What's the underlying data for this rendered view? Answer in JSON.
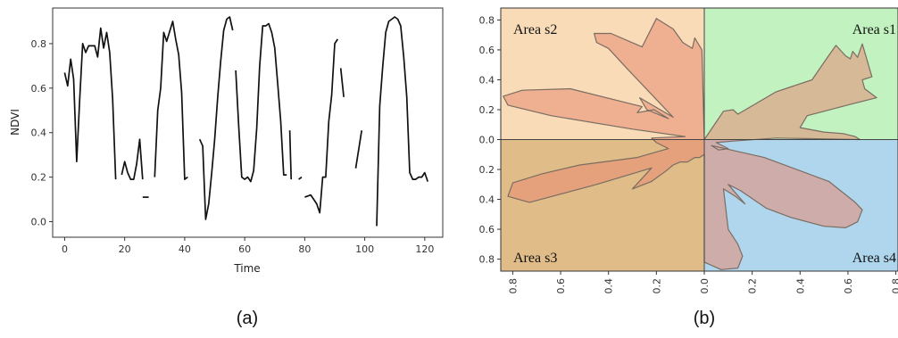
{
  "chart_data": [
    {
      "type": "line",
      "panel_label": "(a)",
      "xlabel": "Time",
      "ylabel": "NDVI",
      "xlim": [
        -4,
        126
      ],
      "ylim": [
        -0.07,
        0.96
      ],
      "xticks": [
        0,
        20,
        40,
        60,
        80,
        100,
        120
      ],
      "yticks": [
        0.0,
        0.2,
        0.4,
        0.6,
        0.8
      ],
      "grid": false,
      "series": [
        {
          "color": "#111111",
          "segments": [
            [
              [
                0,
                0.67
              ],
              [
                1,
                0.61
              ],
              [
                2,
                0.73
              ],
              [
                3,
                0.64
              ],
              [
                4,
                0.27
              ],
              [
                5,
                0.55
              ],
              [
                6,
                0.8
              ],
              [
                7,
                0.76
              ],
              [
                8,
                0.79
              ],
              [
                9,
                0.79
              ],
              [
                10,
                0.79
              ],
              [
                11,
                0.74
              ],
              [
                12,
                0.87
              ],
              [
                13,
                0.78
              ],
              [
                14,
                0.85
              ],
              [
                15,
                0.76
              ],
              [
                16,
                0.55
              ],
              [
                17,
                0.19
              ]
            ],
            [
              [
                19,
                0.21
              ],
              [
                20,
                0.27
              ],
              [
                21,
                0.22
              ],
              [
                22,
                0.19
              ],
              [
                23,
                0.19
              ],
              [
                24,
                0.26
              ],
              [
                25,
                0.37
              ],
              [
                26,
                0.19
              ]
            ],
            [
              [
                26,
                0.11
              ],
              [
                28,
                0.11
              ]
            ],
            [
              [
                30,
                0.2
              ],
              [
                31,
                0.5
              ],
              [
                32,
                0.6
              ],
              [
                33,
                0.85
              ],
              [
                34,
                0.81
              ],
              [
                36,
                0.9
              ],
              [
                37,
                0.82
              ],
              [
                38,
                0.75
              ],
              [
                39,
                0.58
              ],
              [
                40,
                0.19
              ],
              [
                41,
                0.2
              ]
            ],
            [
              [
                45,
                0.37
              ],
              [
                46,
                0.34
              ],
              [
                47,
                0.01
              ],
              [
                48,
                0.08
              ],
              [
                49,
                0.22
              ],
              [
                50,
                0.37
              ],
              [
                51,
                0.56
              ],
              [
                52,
                0.72
              ],
              [
                53,
                0.86
              ],
              [
                54,
                0.91
              ],
              [
                55,
                0.92
              ],
              [
                56,
                0.86
              ]
            ],
            [
              [
                57,
                0.68
              ],
              [
                58,
                0.43
              ],
              [
                59,
                0.2
              ],
              [
                60,
                0.19
              ],
              [
                61,
                0.2
              ],
              [
                62,
                0.18
              ],
              [
                63,
                0.23
              ],
              [
                64,
                0.42
              ],
              [
                65,
                0.7
              ],
              [
                66,
                0.88
              ],
              [
                67,
                0.88
              ],
              [
                68,
                0.89
              ],
              [
                69,
                0.85
              ],
              [
                70,
                0.78
              ],
              [
                71,
                0.62
              ],
              [
                72,
                0.45
              ],
              [
                73,
                0.21
              ],
              [
                74,
                0.21
              ]
            ],
            [
              [
                75,
                0.41
              ],
              [
                75.5,
                0.19
              ]
            ],
            [
              [
                78,
                0.19
              ],
              [
                79,
                0.2
              ]
            ],
            [
              [
                80,
                0.11
              ],
              [
                82,
                0.12
              ],
              [
                83,
                0.1
              ],
              [
                84,
                0.08
              ],
              [
                85,
                0.04
              ],
              [
                86,
                0.2
              ],
              [
                87,
                0.2
              ],
              [
                88,
                0.45
              ],
              [
                89,
                0.57
              ],
              [
                90,
                0.8
              ],
              [
                91,
                0.82
              ]
            ],
            [
              [
                92,
                0.69
              ],
              [
                93,
                0.56
              ]
            ],
            [
              [
                97,
                0.24
              ],
              [
                99,
                0.41
              ]
            ],
            [
              [
                104,
                -0.02
              ],
              [
                105,
                0.52
              ],
              [
                106,
                0.7
              ],
              [
                107,
                0.85
              ],
              [
                108,
                0.9
              ],
              [
                109,
                0.91
              ],
              [
                110,
                0.92
              ],
              [
                111,
                0.91
              ],
              [
                112,
                0.88
              ],
              [
                113,
                0.74
              ],
              [
                114,
                0.56
              ],
              [
                115,
                0.22
              ],
              [
                116,
                0.19
              ],
              [
                117,
                0.19
              ],
              [
                118,
                0.2
              ],
              [
                119,
                0.2
              ],
              [
                120,
                0.22
              ],
              [
                121,
                0.18
              ]
            ]
          ]
        }
      ]
    },
    {
      "type": "area",
      "panel_label": "(b)",
      "xlim": [
        -0.85,
        0.85
      ],
      "ylim": [
        -0.88,
        0.88
      ],
      "xticks": [
        0.8,
        0.6,
        0.4,
        0.2,
        0.0,
        0.2,
        0.4,
        0.6,
        0.8
      ],
      "yticks": [
        0.8,
        0.6,
        0.4,
        0.2,
        0.0,
        0.2,
        0.4,
        0.6,
        0.8
      ],
      "quadrants": [
        {
          "label": "Area s2",
          "color": "#f9dcb7",
          "position": "top-left"
        },
        {
          "label": "Area s1",
          "color": "#c2f2c0",
          "position": "top-right"
        },
        {
          "label": "Area s3",
          "color": "#dfbc88",
          "position": "bottom-left"
        },
        {
          "label": "Area s4",
          "color": "#b0d6ee",
          "position": "bottom-right"
        }
      ],
      "polygon": {
        "fill": "#e88a72",
        "fill_opacity": 0.55,
        "stroke": "#7a6d62",
        "points": [
          [
            0.0,
            0.0
          ],
          [
            0.08,
            0.19
          ],
          [
            0.12,
            0.2
          ],
          [
            0.14,
            0.17
          ],
          [
            0.3,
            0.32
          ],
          [
            0.45,
            0.4
          ],
          [
            0.51,
            0.54
          ],
          [
            0.55,
            0.63
          ],
          [
            0.59,
            0.56
          ],
          [
            0.61,
            0.54
          ],
          [
            0.62,
            0.59
          ],
          [
            0.64,
            0.55
          ],
          [
            0.66,
            0.64
          ],
          [
            0.7,
            0.42
          ],
          [
            0.66,
            0.4
          ],
          [
            0.67,
            0.34
          ],
          [
            0.72,
            0.28
          ],
          [
            0.62,
            0.24
          ],
          [
            0.43,
            0.16
          ],
          [
            0.4,
            0.08
          ],
          [
            0.5,
            0.05
          ],
          [
            0.58,
            0.04
          ],
          [
            0.63,
            0.02
          ],
          [
            0.65,
            0.0
          ],
          [
            0.3,
            0.01
          ],
          [
            0.12,
            -0.01
          ],
          [
            0.05,
            -0.02
          ],
          [
            0.1,
            -0.06
          ],
          [
            0.06,
            -0.07
          ],
          [
            0.03,
            -0.04
          ],
          [
            0.25,
            -0.12
          ],
          [
            0.52,
            -0.28
          ],
          [
            0.63,
            -0.42
          ],
          [
            0.66,
            -0.47
          ],
          [
            0.64,
            -0.55
          ],
          [
            0.59,
            -0.59
          ],
          [
            0.5,
            -0.58
          ],
          [
            0.36,
            -0.52
          ],
          [
            0.26,
            -0.46
          ],
          [
            0.15,
            -0.34
          ],
          [
            0.1,
            -0.3
          ],
          [
            0.17,
            -0.43
          ],
          [
            0.13,
            -0.38
          ],
          [
            0.08,
            -0.33
          ],
          [
            0.1,
            -0.6
          ],
          [
            0.14,
            -0.7
          ],
          [
            0.16,
            -0.78
          ],
          [
            0.14,
            -0.86
          ],
          [
            0.07,
            -0.87
          ],
          [
            0.0,
            -0.82
          ],
          [
            0.0,
            -0.1
          ],
          [
            -0.02,
            -0.12
          ],
          [
            -0.04,
            -0.12
          ],
          [
            -0.07,
            -0.15
          ],
          [
            -0.1,
            -0.15
          ],
          [
            -0.13,
            -0.17
          ],
          [
            -0.16,
            -0.21
          ],
          [
            -0.22,
            -0.28
          ],
          [
            -0.3,
            -0.33
          ],
          [
            -0.22,
            -0.19
          ],
          [
            -0.45,
            -0.3
          ],
          [
            -0.73,
            -0.42
          ],
          [
            -0.82,
            -0.38
          ],
          [
            -0.8,
            -0.29
          ],
          [
            -0.68,
            -0.23
          ],
          [
            -0.52,
            -0.17
          ],
          [
            -0.28,
            -0.12
          ],
          [
            -0.15,
            -0.06
          ],
          [
            -0.2,
            -0.02
          ],
          [
            -0.22,
            0.01
          ],
          [
            -0.08,
            0.02
          ],
          [
            -0.3,
            0.07
          ],
          [
            -0.64,
            0.16
          ],
          [
            -0.82,
            0.23
          ],
          [
            -0.84,
            0.29
          ],
          [
            -0.76,
            0.33
          ],
          [
            -0.56,
            0.34
          ],
          [
            -0.26,
            0.22
          ],
          [
            -0.28,
            0.18
          ],
          [
            -0.21,
            0.2
          ],
          [
            -0.15,
            0.14
          ],
          [
            -0.24,
            0.2
          ],
          [
            -0.27,
            0.28
          ],
          [
            -0.13,
            0.15
          ],
          [
            -0.32,
            0.47
          ],
          [
            -0.4,
            0.61
          ],
          [
            -0.45,
            0.65
          ],
          [
            -0.46,
            0.71
          ],
          [
            -0.39,
            0.71
          ],
          [
            -0.26,
            0.62
          ],
          [
            -0.2,
            0.81
          ],
          [
            -0.13,
            0.74
          ],
          [
            -0.09,
            0.65
          ],
          [
            -0.05,
            0.61
          ],
          [
            -0.04,
            0.68
          ],
          [
            -0.01,
            0.6
          ]
        ]
      }
    }
  ]
}
